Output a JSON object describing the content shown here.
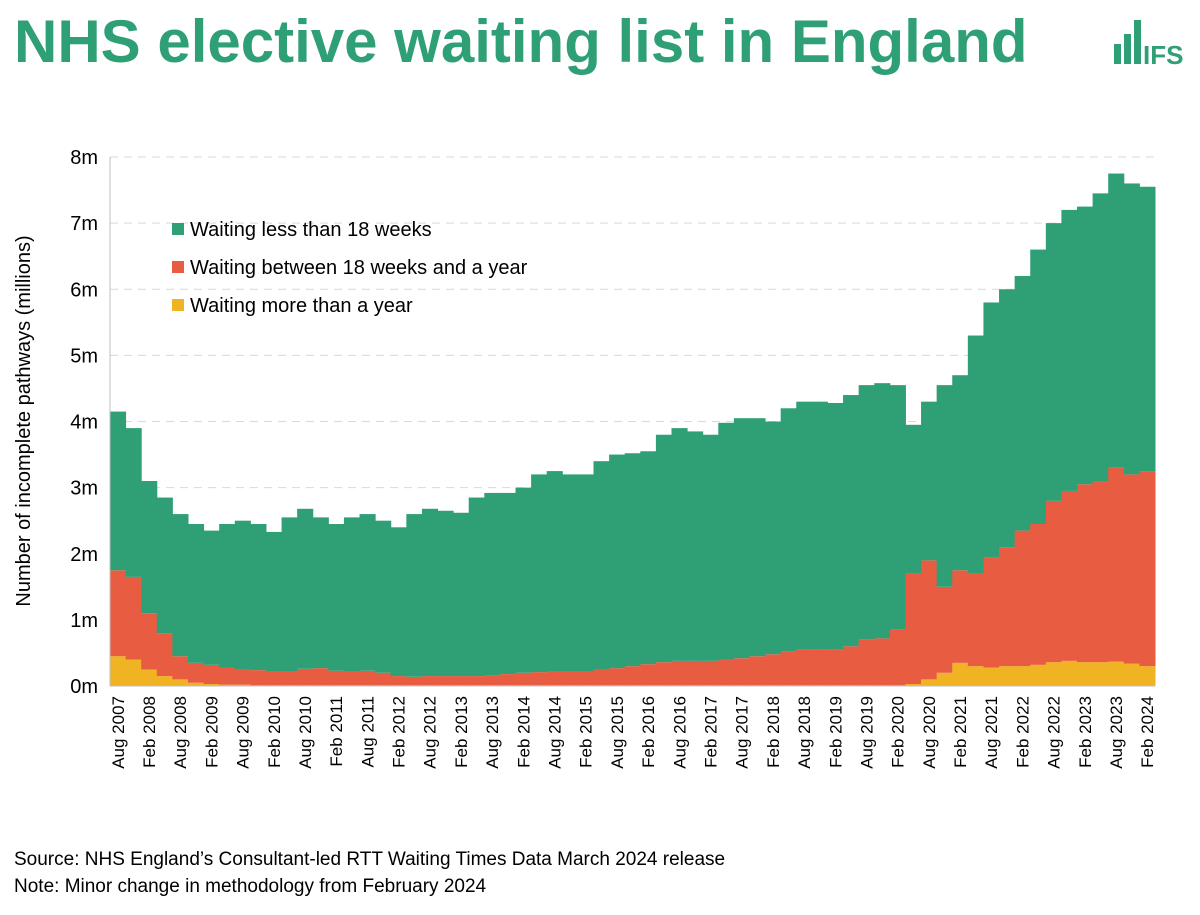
{
  "chart_data": {
    "type": "stacked_bar",
    "title": "NHS elective waiting list in England",
    "logo": "IFS",
    "y_label": "Number of incomplete pathways (millions)",
    "source": "Source: NHS England’s Consultant-led RTT Waiting Times Data March 2024 release",
    "note": "Note: Minor change in methodology from February 2024",
    "categories": [
      "Aug 2007",
      null,
      "Feb 2008",
      null,
      "Aug 2008",
      null,
      "Feb 2009",
      null,
      "Aug 2009",
      null,
      "Feb 2010",
      null,
      "Aug 2010",
      null,
      "Feb 2011",
      null,
      "Aug 2011",
      null,
      "Feb 2012",
      null,
      "Aug 2012",
      null,
      "Feb 2013",
      null,
      "Aug 2013",
      null,
      "Feb 2014",
      null,
      "Aug 2014",
      null,
      "Feb 2015",
      null,
      "Aug 2015",
      null,
      "Feb 2016",
      null,
      "Aug 2016",
      null,
      "Feb 2017",
      null,
      "Aug 2017",
      null,
      "Feb 2018",
      null,
      "Aug 2018",
      null,
      "Feb 2019",
      null,
      "Aug 2019",
      null,
      "Feb 2020",
      null,
      "Aug 2020",
      null,
      "Feb 2021",
      null,
      "Aug 2021",
      null,
      "Feb 2022",
      null,
      "Aug 2022",
      null,
      "Feb 2023",
      null,
      "Aug 2023",
      null,
      "Feb 2024"
    ],
    "series": [
      {
        "name": "Waiting less than 18 weeks",
        "color": "#2f9f76",
        "values": [
          2.4,
          2.25,
          2.0,
          2.05,
          2.15,
          2.1,
          2.03,
          2.17,
          2.25,
          2.21,
          2.11,
          2.33,
          2.42,
          2.28,
          2.22,
          2.33,
          2.37,
          2.3,
          2.25,
          2.46,
          2.53,
          2.5,
          2.47,
          2.7,
          2.76,
          2.74,
          2.8,
          2.99,
          3.03,
          2.98,
          2.98,
          3.15,
          3.23,
          3.22,
          3.22,
          3.44,
          3.52,
          3.47,
          3.42,
          3.58,
          3.63,
          3.6,
          3.52,
          3.68,
          3.75,
          3.75,
          3.73,
          3.8,
          3.85,
          3.86,
          3.7,
          2.25,
          2.4,
          3.05,
          2.95,
          3.6,
          3.85,
          3.9,
          3.85,
          4.15,
          4.2,
          4.25,
          4.2,
          4.35,
          4.45,
          4.4,
          4.3
        ]
      },
      {
        "name": "Waiting between 18 weeks and a year",
        "color": "#e85c41",
        "values": [
          1.3,
          1.25,
          0.85,
          0.65,
          0.35,
          0.3,
          0.29,
          0.26,
          0.23,
          0.23,
          0.21,
          0.21,
          0.25,
          0.26,
          0.22,
          0.21,
          0.22,
          0.19,
          0.14,
          0.13,
          0.14,
          0.14,
          0.14,
          0.14,
          0.15,
          0.17,
          0.19,
          0.2,
          0.21,
          0.21,
          0.21,
          0.24,
          0.26,
          0.29,
          0.32,
          0.35,
          0.37,
          0.37,
          0.37,
          0.39,
          0.41,
          0.44,
          0.47,
          0.51,
          0.54,
          0.54,
          0.54,
          0.59,
          0.69,
          0.71,
          0.84,
          1.67,
          1.8,
          1.3,
          1.4,
          1.4,
          1.67,
          1.8,
          2.05,
          2.13,
          2.44,
          2.57,
          2.69,
          2.74,
          2.93,
          2.86,
          2.95
        ]
      },
      {
        "name": "Waiting more than a year",
        "color": "#f0b323",
        "values": [
          0.45,
          0.4,
          0.25,
          0.15,
          0.1,
          0.05,
          0.03,
          0.02,
          0.02,
          0.01,
          0.01,
          0.01,
          0.01,
          0.01,
          0.01,
          0.01,
          0.01,
          0.01,
          0.01,
          0.01,
          0.01,
          0.01,
          0.01,
          0.01,
          0.01,
          0.01,
          0.01,
          0.01,
          0.01,
          0.01,
          0.01,
          0.01,
          0.01,
          0.01,
          0.01,
          0.01,
          0.01,
          0.01,
          0.01,
          0.01,
          0.01,
          0.01,
          0.01,
          0.01,
          0.01,
          0.01,
          0.01,
          0.01,
          0.01,
          0.01,
          0.01,
          0.03,
          0.1,
          0.2,
          0.35,
          0.3,
          0.28,
          0.3,
          0.3,
          0.32,
          0.36,
          0.38,
          0.36,
          0.36,
          0.37,
          0.34,
          0.3
        ]
      }
    ],
    "ylim": [
      0,
      8
    ],
    "yticks": [
      {
        "value": 0,
        "label": "0m"
      },
      {
        "value": 1,
        "label": "1m"
      },
      {
        "value": 2,
        "label": "2m"
      },
      {
        "value": 3,
        "label": "3m"
      },
      {
        "value": 4,
        "label": "4m"
      },
      {
        "value": 5,
        "label": "5m"
      },
      {
        "value": 6,
        "label": "6m"
      },
      {
        "value": 7,
        "label": "7m"
      },
      {
        "value": 8,
        "label": "8m"
      }
    ],
    "grid": true
  }
}
